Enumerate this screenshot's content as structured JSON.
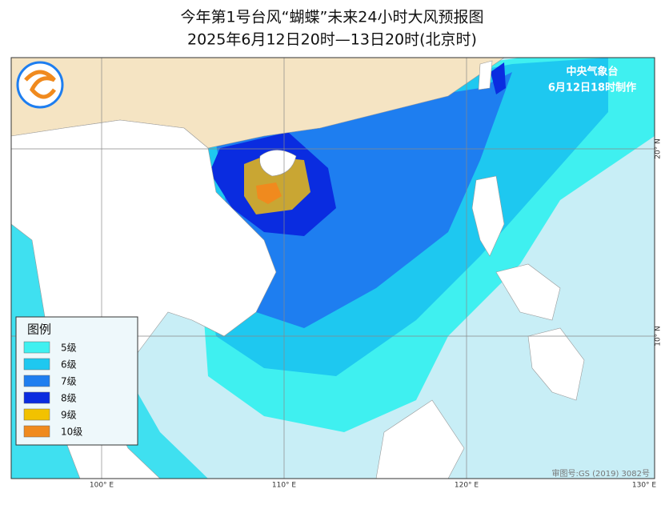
{
  "header": {
    "title": "今年第1号台风“蝴蝶”未来24小时大风预报图",
    "subtitle": "2025年6月12日20时—13日20时(北京时)"
  },
  "agency": {
    "name": "中央气象台",
    "issued": "6月12日18时制作"
  },
  "legend": {
    "title": "图例",
    "items": [
      {
        "label": "5级",
        "color": "#3ff0f0"
      },
      {
        "label": "6级",
        "color": "#1ec8f0"
      },
      {
        "label": "7级",
        "color": "#1e7ef0"
      },
      {
        "label": "8级",
        "color": "#0a2ce0"
      },
      {
        "label": "9级",
        "color": "#f2c200"
      },
      {
        "label": "10级",
        "color": "#f08a1e"
      }
    ]
  },
  "axes": {
    "longitudes": [
      "100° E",
      "110° E",
      "120° E",
      "130° E"
    ],
    "latitudes": [
      "20° N",
      "10° N"
    ]
  },
  "footer": {
    "approval": "审图号:GS (2019) 3082号"
  }
}
